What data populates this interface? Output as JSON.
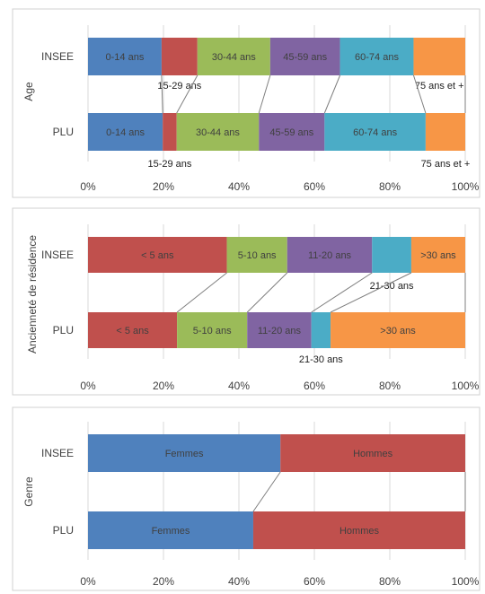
{
  "chart_data": [
    {
      "type": "bar",
      "orientation": "horizontal",
      "stacked": "percent",
      "ylabel": "Age",
      "categories": [
        "INSEE",
        "PLU"
      ],
      "xlim": [
        0,
        100
      ],
      "x_ticks": [
        "0%",
        "20%",
        "40%",
        "60%",
        "80%",
        "100%"
      ],
      "grid": true,
      "segments": [
        {
          "label": "0-14 ans",
          "color": "#4f81bd",
          "values": [
            19.5,
            19.8
          ],
          "label_pos": "inside"
        },
        {
          "label": "15-29 ans",
          "color": "#c0504d",
          "values": [
            9.5,
            3.7
          ],
          "label_pos": "below"
        },
        {
          "label": "30-44 ans",
          "color": "#9bbb59",
          "values": [
            19.3,
            21.8
          ],
          "label_pos": "inside"
        },
        {
          "label": "45-59 ans",
          "color": "#8064a2",
          "values": [
            18.5,
            17.4
          ],
          "label_pos": "inside"
        },
        {
          "label": "60-74 ans",
          "color": "#4bacc6",
          "values": [
            19.5,
            26.8
          ],
          "label_pos": "inside"
        },
        {
          "label": "75 ans et +",
          "color": "#f79646",
          "values": [
            13.7,
            10.5
          ],
          "label_pos": "below"
        }
      ]
    },
    {
      "type": "bar",
      "orientation": "horizontal",
      "stacked": "percent",
      "ylabel": "Ancienneté de résidence",
      "categories": [
        "INSEE",
        "PLU"
      ],
      "xlim": [
        0,
        100
      ],
      "x_ticks": [
        "0%",
        "20%",
        "40%",
        "60%",
        "80%",
        "100%"
      ],
      "grid": true,
      "segments": [
        {
          "label": "< 5 ans",
          "color": "#c0504d",
          "values": [
            36.8,
            23.6
          ],
          "label_pos": "inside"
        },
        {
          "label": "5-10 ans",
          "color": "#9bbb59",
          "values": [
            16.0,
            18.6
          ],
          "label_pos": "inside"
        },
        {
          "label": "11-20 ans",
          "color": "#8064a2",
          "values": [
            22.5,
            17.0
          ],
          "label_pos": "inside"
        },
        {
          "label": "21-30 ans",
          "color": "#4bacc6",
          "values": [
            10.4,
            5.1
          ],
          "label_pos": "below"
        },
        {
          "label": ">30 ans",
          "color": "#f79646",
          "values": [
            14.3,
            35.7
          ],
          "label_pos": "inside"
        }
      ]
    },
    {
      "type": "bar",
      "orientation": "horizontal",
      "stacked": "percent",
      "ylabel": "Genre",
      "categories": [
        "INSEE",
        "PLU"
      ],
      "xlim": [
        0,
        100
      ],
      "x_ticks": [
        "0%",
        "20%",
        "40%",
        "60%",
        "80%",
        "100%"
      ],
      "grid": true,
      "segments": [
        {
          "label": "Femmes",
          "color": "#4f81bd",
          "values": [
            51.0,
            43.8
          ],
          "label_pos": "inside"
        },
        {
          "label": "Hommes",
          "color": "#c0504d",
          "values": [
            49.0,
            56.2
          ],
          "label_pos": "inside"
        }
      ]
    }
  ]
}
